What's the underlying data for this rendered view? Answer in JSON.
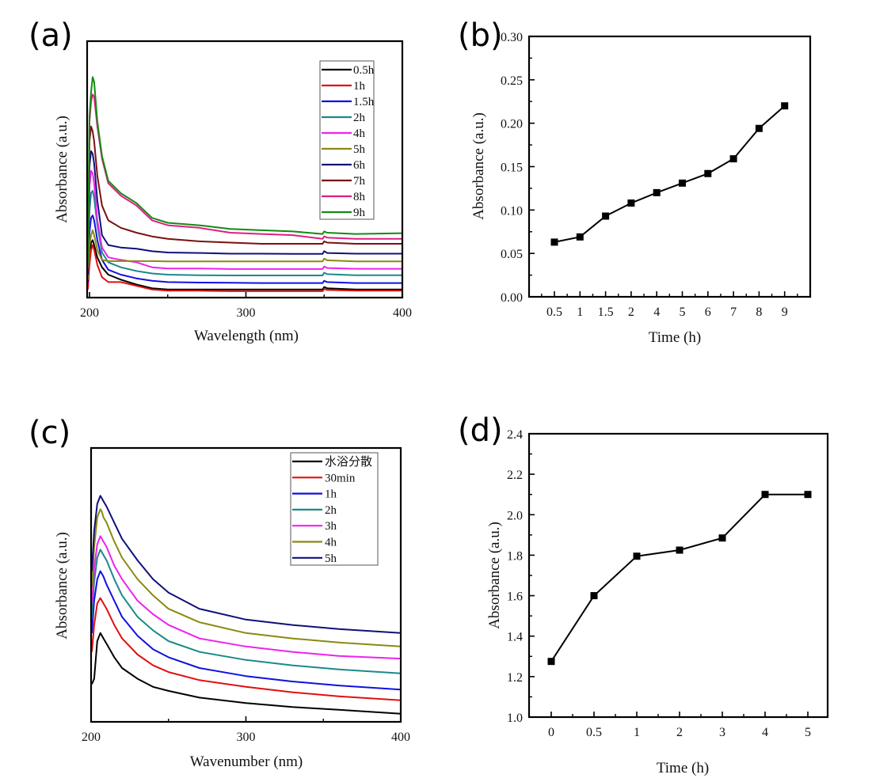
{
  "chart_data": [
    {
      "id": "a",
      "panel_label": "(a)",
      "type": "line",
      "xlabel": "Wavelength (nm)",
      "ylabel": "Absorbance (a.u.)",
      "xlim": [
        198,
        400
      ],
      "ylim": [
        0,
        1
      ],
      "xticks": [
        200,
        300,
        400
      ],
      "xtick_labels": [
        "200",
        "300",
        "400"
      ],
      "minor_xticks": [
        250,
        350
      ],
      "yticks": [],
      "grid": false,
      "legend_position": "top-right",
      "note": "y-axis in arbitrary units (no numeric ticks); curve values are approximate relative heights",
      "x": [
        199,
        200,
        201,
        202,
        203,
        205,
        208,
        212,
        220,
        230,
        240,
        250,
        270,
        290,
        310,
        330,
        349,
        350,
        352,
        370,
        400
      ],
      "series": [
        {
          "name": "0.5h",
          "color": "#000000",
          "values": [
            0.03,
            0.15,
            0.21,
            0.22,
            0.2,
            0.15,
            0.11,
            0.08,
            0.06,
            0.04,
            0.025,
            0.02,
            0.02,
            0.02,
            0.02,
            0.02,
            0.02,
            0.03,
            0.025,
            0.02,
            0.02
          ]
        },
        {
          "name": "1h",
          "color": "#e01010",
          "values": [
            0.02,
            0.12,
            0.18,
            0.2,
            0.18,
            0.12,
            0.07,
            0.05,
            0.05,
            0.035,
            0.02,
            0.015,
            0.015,
            0.013,
            0.013,
            0.013,
            0.013,
            0.022,
            0.018,
            0.015,
            0.015
          ]
        },
        {
          "name": "1.5h",
          "color": "#1010e0",
          "values": [
            0.05,
            0.25,
            0.31,
            0.32,
            0.3,
            0.22,
            0.14,
            0.1,
            0.08,
            0.065,
            0.055,
            0.05,
            0.048,
            0.047,
            0.046,
            0.046,
            0.046,
            0.055,
            0.05,
            0.046,
            0.046
          ]
        },
        {
          "name": "2h",
          "color": "#1a8a8a",
          "values": [
            0.06,
            0.34,
            0.41,
            0.42,
            0.39,
            0.28,
            0.17,
            0.13,
            0.11,
            0.095,
            0.085,
            0.08,
            0.078,
            0.077,
            0.077,
            0.077,
            0.077,
            0.088,
            0.082,
            0.078,
            0.078
          ]
        },
        {
          "name": "4h",
          "color": "#ee22ee",
          "values": [
            0.07,
            0.44,
            0.5,
            0.49,
            0.45,
            0.3,
            0.19,
            0.15,
            0.14,
            0.13,
            0.11,
            0.105,
            0.105,
            0.103,
            0.103,
            0.103,
            0.103,
            0.113,
            0.107,
            0.104,
            0.104
          ]
        },
        {
          "name": "5h",
          "color": "#8a8a10",
          "values": [
            0.06,
            0.2,
            0.24,
            0.26,
            0.24,
            0.18,
            0.14,
            0.135,
            0.135,
            0.135,
            0.135,
            0.134,
            0.134,
            0.134,
            0.134,
            0.134,
            0.134,
            0.145,
            0.138,
            0.134,
            0.134
          ]
        },
        {
          "name": "6h",
          "color": "#10107a",
          "values": [
            0.08,
            0.52,
            0.58,
            0.57,
            0.53,
            0.38,
            0.24,
            0.2,
            0.19,
            0.185,
            0.175,
            0.17,
            0.168,
            0.165,
            0.165,
            0.164,
            0.164,
            0.175,
            0.168,
            0.165,
            0.165
          ]
        },
        {
          "name": "7h",
          "color": "#7a1010",
          "values": [
            0.1,
            0.62,
            0.68,
            0.66,
            0.62,
            0.48,
            0.36,
            0.3,
            0.27,
            0.25,
            0.235,
            0.225,
            0.215,
            0.21,
            0.205,
            0.205,
            0.205,
            0.215,
            0.21,
            0.205,
            0.205
          ]
        },
        {
          "name": "8h",
          "color": "#e01e80",
          "values": [
            0.11,
            0.7,
            0.78,
            0.81,
            0.8,
            0.68,
            0.55,
            0.45,
            0.4,
            0.36,
            0.3,
            0.28,
            0.27,
            0.25,
            0.245,
            0.24,
            0.225,
            0.235,
            0.23,
            0.225,
            0.225
          ]
        },
        {
          "name": "9h",
          "color": "#138a13",
          "values": [
            0.12,
            0.72,
            0.82,
            0.88,
            0.86,
            0.7,
            0.56,
            0.46,
            0.41,
            0.37,
            0.31,
            0.29,
            0.28,
            0.265,
            0.26,
            0.255,
            0.245,
            0.255,
            0.25,
            0.245,
            0.248
          ]
        }
      ]
    },
    {
      "id": "b",
      "panel_label": "(b)",
      "type": "line",
      "xlabel": "Time (h)",
      "ylabel": "Absorbance (a.u.)",
      "categories": [
        "0.5",
        "1",
        "1.5",
        "2",
        "4",
        "5",
        "6",
        "7",
        "8",
        "9"
      ],
      "values": [
        0.063,
        0.069,
        0.093,
        0.108,
        0.12,
        0.131,
        0.142,
        0.159,
        0.194,
        0.22
      ],
      "ylim": [
        0,
        0.3
      ],
      "yticks": [
        0.0,
        0.05,
        0.1,
        0.15,
        0.2,
        0.25,
        0.3
      ],
      "ytick_labels": [
        "0.00",
        "0.05",
        "0.10",
        "0.15",
        "0.20",
        "0.25",
        "0.30"
      ],
      "marker": "square",
      "color": "#000000",
      "grid": false
    },
    {
      "id": "c",
      "panel_label": "(c)",
      "type": "line",
      "xlabel": "Wavenumber (nm)",
      "ylabel": "Absorbance (a.u.)",
      "xlim": [
        200,
        400
      ],
      "ylim": [
        0,
        1
      ],
      "xticks": [
        200,
        300,
        400
      ],
      "xtick_labels": [
        "200",
        "300",
        "400"
      ],
      "minor_xticks": [
        250,
        350
      ],
      "yticks": [],
      "grid": false,
      "legend_position": "top-right",
      "note": "y-axis in arbitrary units (no numeric ticks); curve values are approximate relative heights",
      "x": [
        200,
        202,
        204,
        206,
        207,
        208,
        210,
        215,
        220,
        230,
        240,
        250,
        270,
        300,
        330,
        360,
        400
      ],
      "series": [
        {
          "name": "水浴分散",
          "color": "#000000",
          "values": [
            0.14,
            0.16,
            0.3,
            0.33,
            0.32,
            0.31,
            0.29,
            0.24,
            0.2,
            0.16,
            0.13,
            0.115,
            0.09,
            0.07,
            0.055,
            0.045,
            0.03
          ]
        },
        {
          "name": "30min",
          "color": "#e01010",
          "values": [
            0.26,
            0.36,
            0.44,
            0.46,
            0.45,
            0.44,
            0.42,
            0.36,
            0.31,
            0.25,
            0.21,
            0.185,
            0.155,
            0.13,
            0.11,
            0.095,
            0.08
          ]
        },
        {
          "name": "1h",
          "color": "#1010e0",
          "values": [
            0.33,
            0.45,
            0.53,
            0.56,
            0.55,
            0.54,
            0.51,
            0.45,
            0.39,
            0.32,
            0.27,
            0.24,
            0.2,
            0.17,
            0.15,
            0.135,
            0.12
          ]
        },
        {
          "name": "2h",
          "color": "#1a8a8a",
          "values": [
            0.39,
            0.52,
            0.61,
            0.64,
            0.63,
            0.62,
            0.6,
            0.53,
            0.47,
            0.39,
            0.34,
            0.3,
            0.26,
            0.23,
            0.21,
            0.195,
            0.18
          ]
        },
        {
          "name": "3h",
          "color": "#ee22ee",
          "values": [
            0.44,
            0.57,
            0.66,
            0.69,
            0.68,
            0.67,
            0.65,
            0.58,
            0.53,
            0.45,
            0.4,
            0.36,
            0.31,
            0.28,
            0.26,
            0.245,
            0.235
          ]
        },
        {
          "name": "4h",
          "color": "#8a8a10",
          "values": [
            0.5,
            0.65,
            0.76,
            0.79,
            0.78,
            0.76,
            0.74,
            0.67,
            0.61,
            0.53,
            0.47,
            0.42,
            0.37,
            0.33,
            0.31,
            0.295,
            0.28
          ]
        },
        {
          "name": "5h",
          "color": "#10107a",
          "values": [
            0.56,
            0.71,
            0.81,
            0.84,
            0.83,
            0.82,
            0.8,
            0.74,
            0.68,
            0.6,
            0.53,
            0.48,
            0.42,
            0.38,
            0.36,
            0.345,
            0.33
          ]
        }
      ]
    },
    {
      "id": "d",
      "panel_label": "(d)",
      "type": "line",
      "xlabel": "Time (h)",
      "ylabel": "Absorbance (a.u.)",
      "categories": [
        "0",
        "0.5",
        "1",
        "2",
        "3",
        "4",
        "5"
      ],
      "values": [
        1.275,
        1.6,
        1.795,
        1.825,
        1.885,
        2.1,
        2.1
      ],
      "ylim": [
        1.0,
        2.4
      ],
      "yticks": [
        1.0,
        1.2,
        1.4,
        1.6,
        1.8,
        2.0,
        2.2,
        2.4
      ],
      "ytick_labels": [
        "1.0",
        "1.2",
        "1.4",
        "1.6",
        "1.8",
        "2.0",
        "2.2",
        "2.4"
      ],
      "marker": "square",
      "color": "#000000",
      "grid": false
    }
  ]
}
